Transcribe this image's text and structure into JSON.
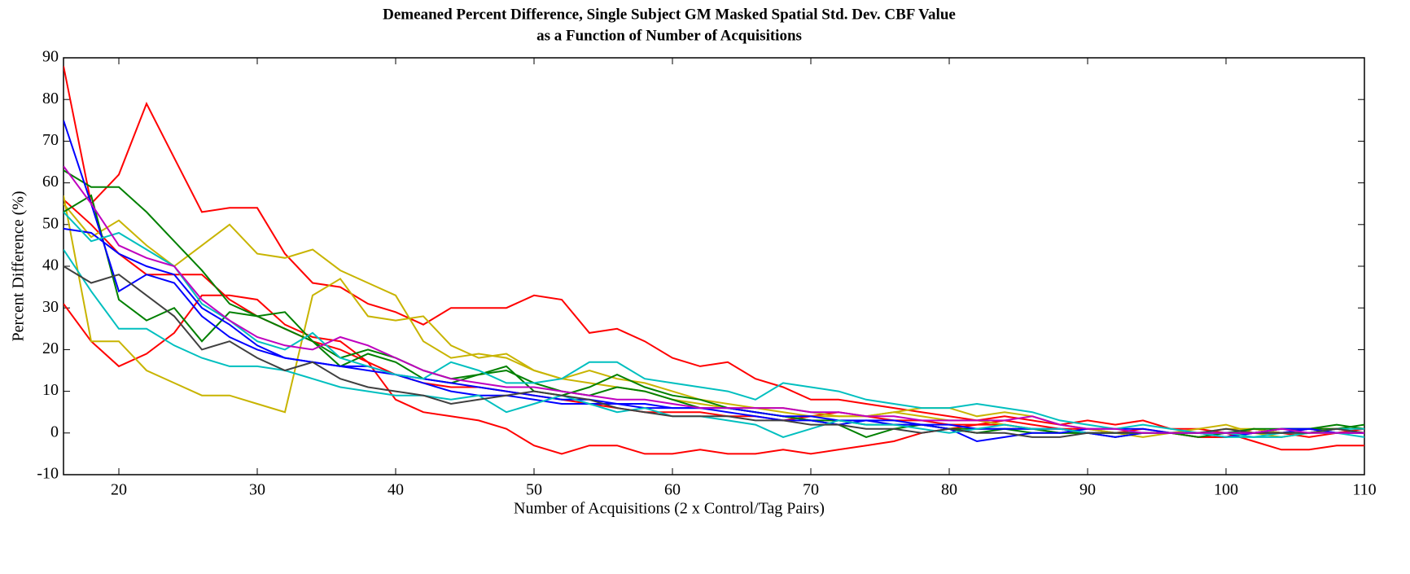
{
  "chart_data": {
    "type": "line",
    "title": [
      "Demeaned Percent Difference, Single Subject GM Masked Spatial Std. Dev. CBF Value",
      "as a Function of Number of Acquisitions"
    ],
    "x_label": "Number of Acquisitions (2 x Control/Tag Pairs)",
    "y_label": "Percent Difference (%)",
    "xlim": [
      16,
      110
    ],
    "ylim": [
      -10,
      90
    ],
    "xticks": [
      20,
      30,
      40,
      50,
      60,
      70,
      80,
      90,
      100,
      110
    ],
    "yticks": [
      -10,
      0,
      10,
      20,
      30,
      40,
      50,
      60,
      70,
      80,
      90
    ],
    "grid": false,
    "x": [
      16,
      18,
      20,
      22,
      24,
      26,
      28,
      30,
      32,
      34,
      36,
      38,
      40,
      42,
      44,
      46,
      48,
      50,
      52,
      54,
      56,
      58,
      60,
      62,
      64,
      66,
      68,
      70,
      72,
      74,
      76,
      78,
      80,
      82,
      84,
      86,
      88,
      90,
      92,
      94,
      96,
      98,
      100,
      102,
      104,
      106,
      108,
      110
    ],
    "series": [
      {
        "color": "#ff0000",
        "values": [
          88,
          55,
          62,
          79,
          66,
          53,
          54,
          54,
          43,
          36,
          35,
          31,
          29,
          26,
          30,
          30,
          30,
          33,
          32,
          24,
          25,
          22,
          18,
          16,
          17,
          13,
          11,
          8,
          8,
          7,
          6,
          5,
          4,
          3,
          4,
          3,
          2,
          3,
          2,
          3,
          1,
          1,
          0,
          -2,
          -4,
          -4,
          -3,
          -3
        ]
      },
      {
        "color": "#ff0000",
        "values": [
          31,
          22,
          16,
          19,
          24,
          33,
          33,
          32,
          26,
          23,
          22,
          17,
          8,
          5,
          4,
          3,
          1,
          -3,
          -5,
          -3,
          -3,
          -5,
          -5,
          -4,
          -5,
          -5,
          -4,
          -5,
          -4,
          -3,
          -2,
          0,
          1,
          2,
          2,
          1,
          1,
          0,
          0,
          1,
          0,
          -1,
          -1,
          1,
          0,
          -1,
          0,
          1
        ]
      },
      {
        "color": "#ff0000",
        "values": [
          56,
          50,
          43,
          38,
          38,
          38,
          32,
          28,
          25,
          22,
          20,
          17,
          14,
          12,
          11,
          11,
          10,
          9,
          8,
          7,
          6,
          5,
          5,
          5,
          4,
          4,
          3,
          4,
          5,
          4,
          3,
          3,
          2,
          2,
          3,
          2,
          1,
          1,
          0,
          0,
          0,
          -1,
          -1,
          0,
          0,
          1,
          1,
          0
        ]
      },
      {
        "color": "#c8b400",
        "values": [
          57,
          22,
          22,
          15,
          12,
          9,
          9,
          7,
          5,
          33,
          37,
          28,
          27,
          28,
          21,
          18,
          19,
          15,
          13,
          15,
          13,
          12,
          10,
          8,
          7,
          6,
          6,
          5,
          4,
          4,
          5,
          6,
          6,
          4,
          5,
          4,
          2,
          1,
          0,
          0,
          0,
          1,
          2,
          0,
          -1,
          0,
          1,
          0
        ]
      },
      {
        "color": "#c8b400",
        "values": [
          55,
          47,
          51,
          45,
          40,
          45,
          50,
          43,
          42,
          44,
          39,
          36,
          33,
          22,
          18,
          19,
          18,
          15,
          13,
          12,
          11,
          10,
          8,
          7,
          6,
          6,
          5,
          4,
          4,
          4,
          5,
          4,
          3,
          3,
          2,
          1,
          0,
          0,
          0,
          -1,
          0,
          0,
          1,
          1,
          0,
          0,
          0,
          0
        ]
      },
      {
        "color": "#008000",
        "values": [
          63,
          59,
          59,
          53,
          46,
          39,
          31,
          28,
          29,
          22,
          16,
          19,
          17,
          13,
          12,
          14,
          15,
          12,
          10,
          9,
          11,
          10,
          8,
          6,
          6,
          5,
          4,
          3,
          3,
          2,
          2,
          2,
          1,
          1,
          1,
          0,
          0,
          0,
          0,
          0,
          0,
          -1,
          0,
          0,
          1,
          1,
          2,
          1
        ]
      },
      {
        "color": "#008000",
        "values": [
          53,
          57,
          32,
          27,
          30,
          22,
          29,
          28,
          25,
          22,
          18,
          20,
          18,
          15,
          13,
          14,
          16,
          10,
          9,
          11,
          14,
          11,
          9,
          8,
          6,
          5,
          4,
          3,
          2,
          -1,
          1,
          2,
          1,
          0,
          1,
          1,
          0,
          0,
          -1,
          0,
          0,
          0,
          0,
          1,
          1,
          1,
          1,
          2
        ]
      },
      {
        "color": "#0000ff",
        "values": [
          75,
          55,
          34,
          38,
          36,
          28,
          23,
          20,
          18,
          17,
          16,
          16,
          14,
          12,
          10,
          9,
          9,
          8,
          7,
          7,
          7,
          6,
          6,
          6,
          6,
          5,
          4,
          4,
          3,
          3,
          2,
          2,
          1,
          -2,
          -1,
          0,
          0,
          1,
          1,
          1,
          0,
          0,
          0,
          0,
          1,
          1,
          0,
          0
        ]
      },
      {
        "color": "#0000ff",
        "values": [
          49,
          48,
          43,
          40,
          38,
          30,
          26,
          21,
          18,
          17,
          16,
          15,
          14,
          13,
          12,
          11,
          10,
          9,
          8,
          8,
          7,
          7,
          6,
          6,
          5,
          4,
          3,
          3,
          2,
          3,
          3,
          2,
          2,
          1,
          1,
          1,
          1,
          0,
          -1,
          0,
          0,
          0,
          -1,
          0,
          0,
          1,
          0,
          0
        ]
      },
      {
        "color": "#00bfbf",
        "values": [
          44,
          34,
          25,
          25,
          21,
          18,
          16,
          16,
          15,
          13,
          11,
          10,
          9,
          9,
          8,
          9,
          5,
          7,
          9,
          7,
          5,
          6,
          4,
          4,
          3,
          2,
          -1,
          1,
          3,
          2,
          2,
          1,
          0,
          1,
          2,
          1,
          1,
          0,
          0,
          0,
          0,
          0,
          0,
          -1,
          -1,
          0,
          1,
          1
        ]
      },
      {
        "color": "#00bfbf",
        "values": [
          53,
          46,
          48,
          44,
          40,
          31,
          27,
          22,
          20,
          24,
          18,
          16,
          14,
          13,
          17,
          15,
          12,
          12,
          13,
          17,
          17,
          13,
          12,
          11,
          10,
          8,
          12,
          11,
          10,
          8,
          7,
          6,
          6,
          7,
          6,
          5,
          3,
          2,
          1,
          2,
          1,
          0,
          -1,
          -1,
          0,
          0,
          0,
          -1
        ]
      },
      {
        "color": "#404040",
        "values": [
          40,
          36,
          38,
          33,
          28,
          20,
          22,
          18,
          15,
          17,
          13,
          11,
          10,
          9,
          7,
          8,
          9,
          10,
          9,
          8,
          6,
          5,
          4,
          4,
          4,
          3,
          3,
          2,
          2,
          1,
          1,
          0,
          1,
          0,
          0,
          -1,
          -1,
          0,
          0,
          0,
          0,
          0,
          1,
          0,
          0,
          0,
          1,
          0
        ]
      },
      {
        "color": "#bf00bf",
        "values": [
          64,
          55,
          45,
          42,
          40,
          32,
          27,
          23,
          21,
          20,
          23,
          21,
          18,
          15,
          13,
          12,
          11,
          11,
          10,
          9,
          8,
          8,
          7,
          6,
          6,
          6,
          6,
          5,
          5,
          4,
          4,
          3,
          3,
          3,
          3,
          4,
          2,
          1,
          1,
          0,
          0,
          0,
          0,
          0,
          1,
          0,
          0,
          0
        ]
      }
    ]
  }
}
